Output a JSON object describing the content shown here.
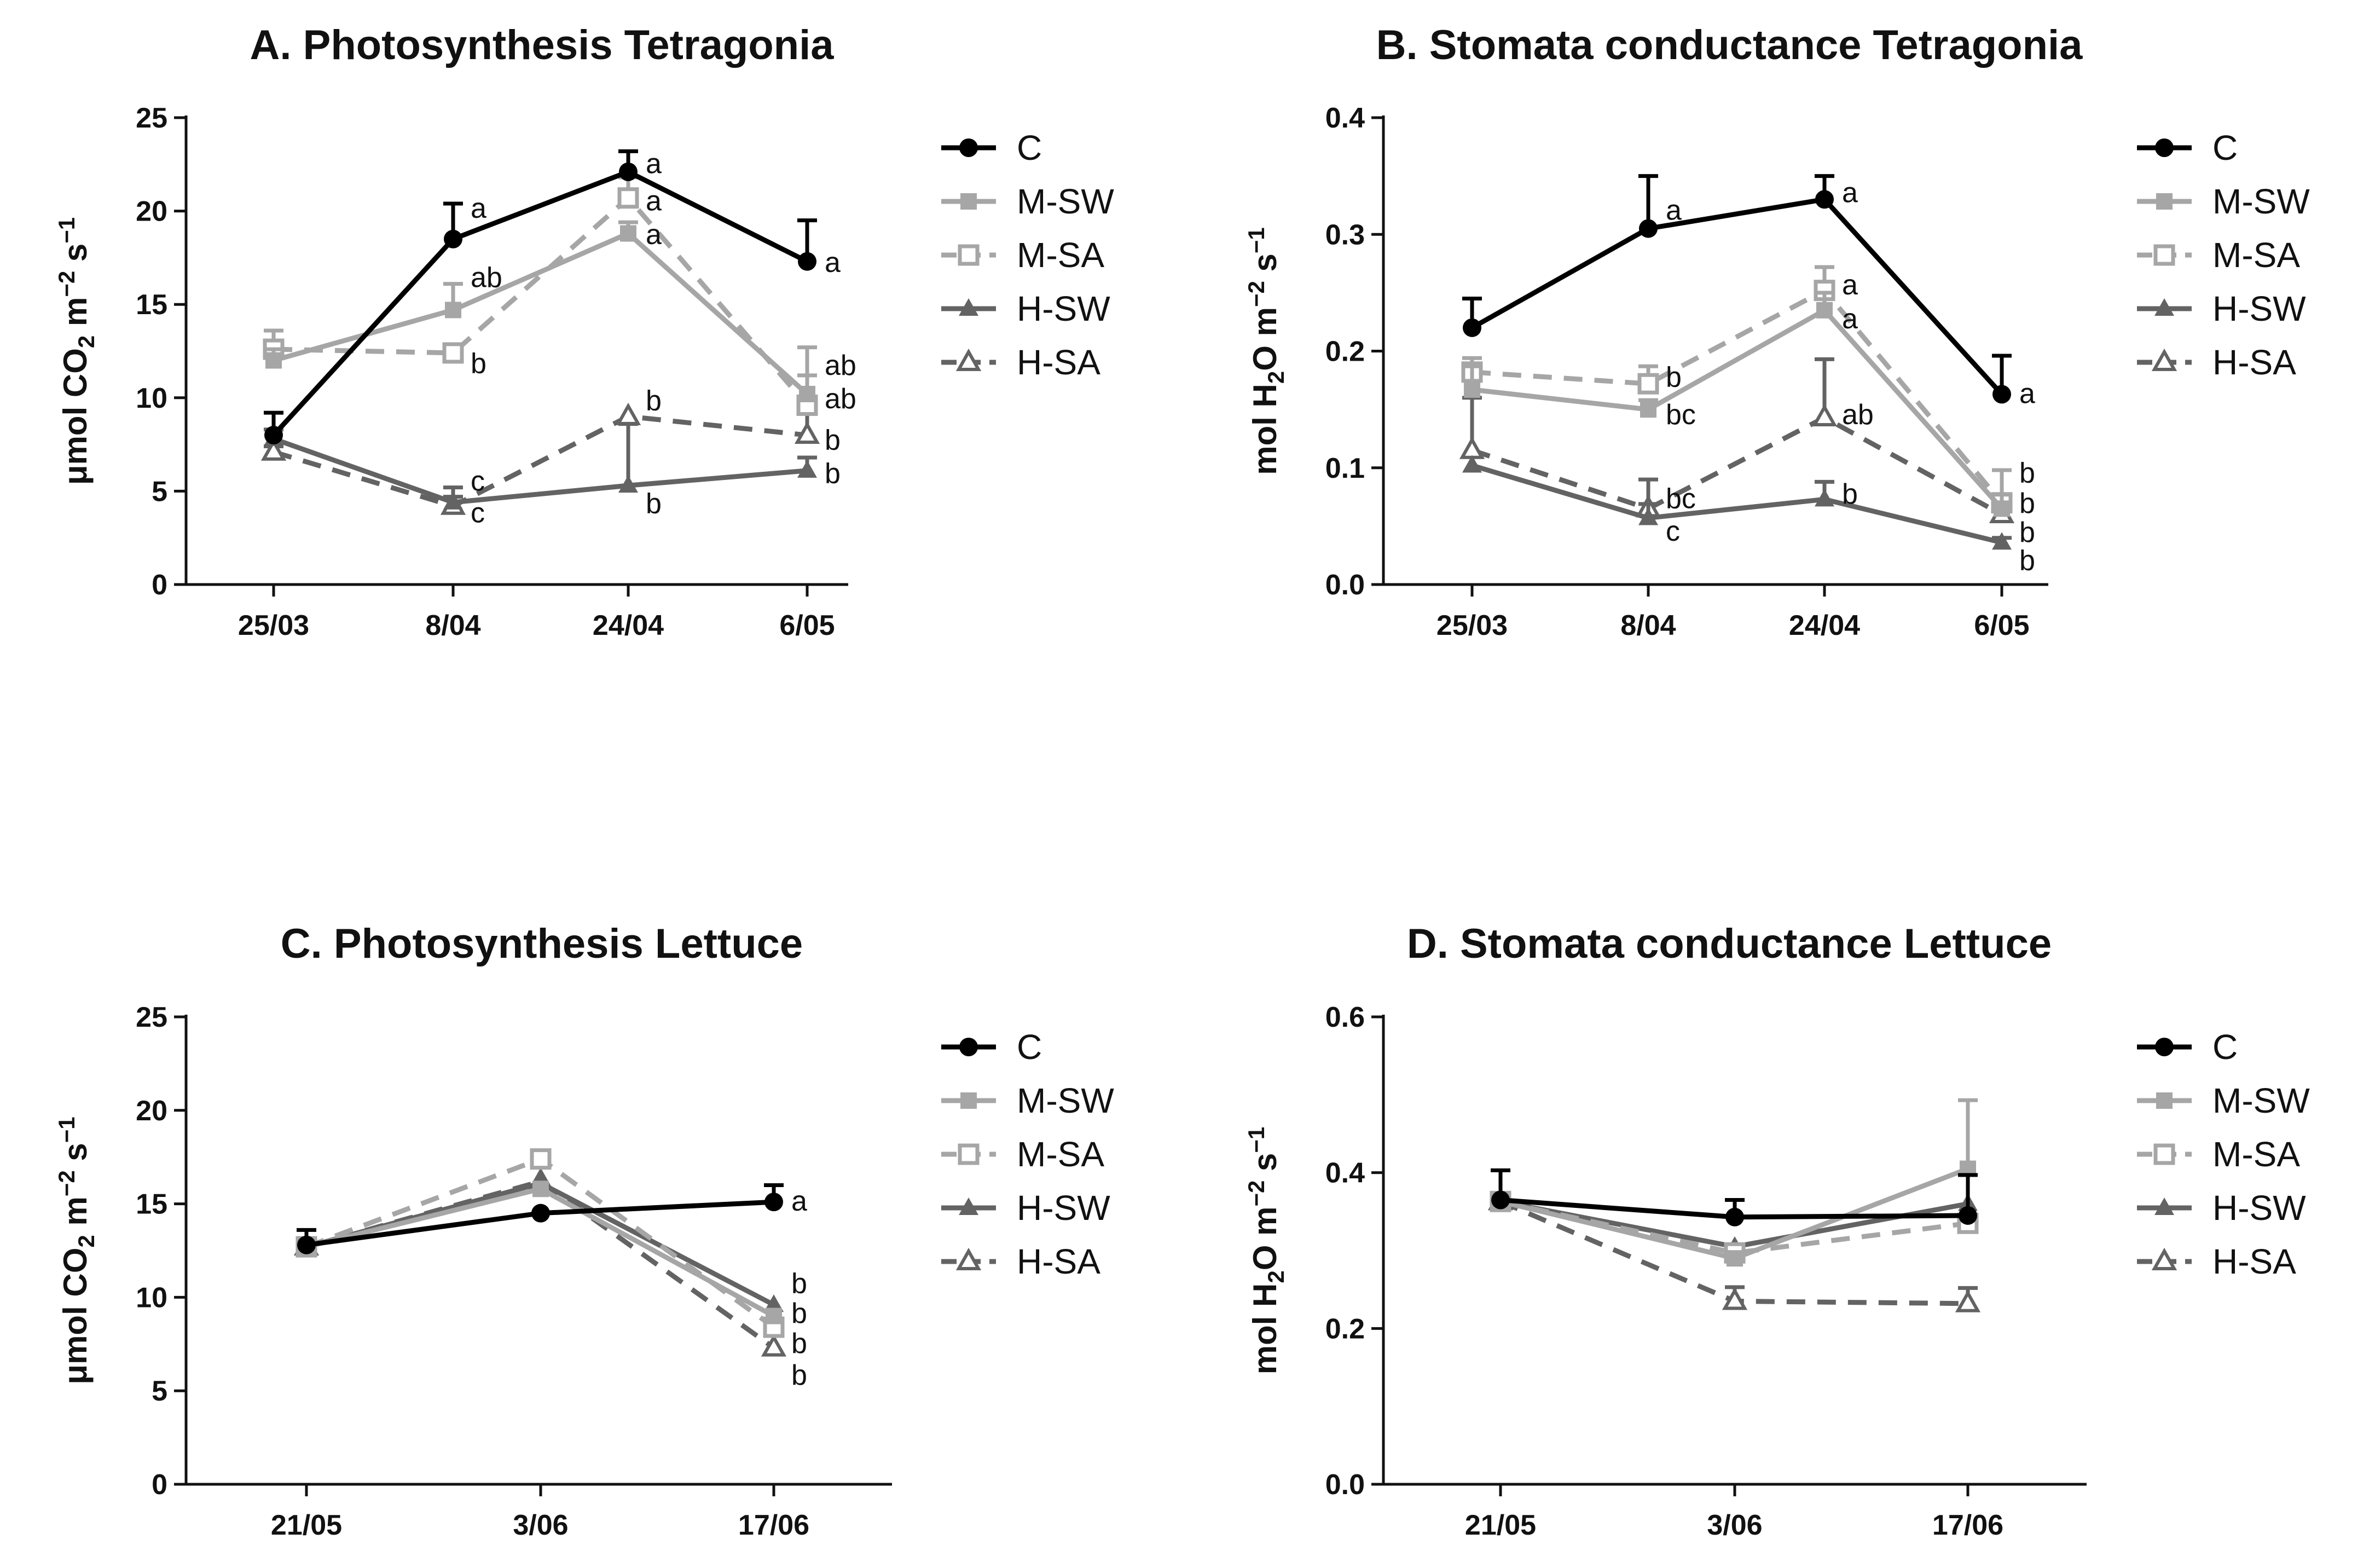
{
  "colors": {
    "C": "#000000",
    "M-SW": "#a6a6a6",
    "M-SA": "#a6a6a6",
    "H-SW": "#636363",
    "H-SA": "#636363"
  },
  "legend": {
    "labels": [
      "C",
      "M-SW",
      "M-SA",
      "H-SW",
      "H-SA"
    ]
  },
  "chart_data": [
    {
      "type": "line",
      "title": "A. Photosynthesis Tetragonia",
      "ylabel": "μmol CO2 m−2 s−1",
      "ylabel_parts": {
        "a": "μmol CO",
        "sub": "2",
        "b": " m",
        "sup1": "−2",
        "c": " s",
        "sup2": "−1"
      },
      "ylim": [
        0,
        25
      ],
      "yticks": [
        0,
        5,
        10,
        15,
        20,
        25
      ],
      "ytick_labels": [
        "0",
        "5",
        "10",
        "15",
        "20",
        "25"
      ],
      "categories": [
        "25/03",
        "8/04",
        "24/04",
        "6/05"
      ],
      "series": [
        {
          "name": "C",
          "values": [
            8.0,
            18.5,
            22.1,
            17.3
          ],
          "err": [
            1.2,
            1.9,
            1.1,
            2.2
          ]
        },
        {
          "name": "M-SW",
          "values": [
            12.0,
            14.7,
            18.8,
            10.2
          ],
          "err": [
            0.6,
            1.4,
            0.6,
            1.0
          ]
        },
        {
          "name": "M-SA",
          "values": [
            12.6,
            12.4,
            20.7,
            9.6
          ],
          "err": [
            1.0,
            0.0,
            1.1,
            3.1
          ]
        },
        {
          "name": "H-SW",
          "values": [
            7.8,
            4.4,
            5.3,
            6.1
          ],
          "err": [
            0.5,
            0.8,
            3.3,
            0.7
          ]
        },
        {
          "name": "H-SA",
          "values": [
            7.1,
            4.2,
            9.0,
            8.0
          ],
          "err": [
            0.3,
            0.5,
            0.0,
            1.3
          ]
        }
      ],
      "annotations": [
        {
          "text": "a",
          "x": 1,
          "y": 20.1
        },
        {
          "text": "ab",
          "x": 1,
          "y": 16.4
        },
        {
          "text": "b",
          "x": 1,
          "y": 11.8
        },
        {
          "text": "c",
          "x": 1,
          "y": 5.5
        },
        {
          "text": "c",
          "x": 1,
          "y": 3.8
        },
        {
          "text": "a",
          "x": 2,
          "y": 22.5
        },
        {
          "text": "a",
          "x": 2,
          "y": 20.5
        },
        {
          "text": "a",
          "x": 2,
          "y": 18.7
        },
        {
          "text": "b",
          "x": 2,
          "y": 9.8
        },
        {
          "text": "b",
          "x": 2,
          "y": 4.3
        },
        {
          "text": "a",
          "x": 3,
          "y": 17.2
        },
        {
          "text": "ab",
          "x": 3,
          "y": 11.7
        },
        {
          "text": "ab",
          "x": 3,
          "y": 9.9
        },
        {
          "text": "b",
          "x": 3,
          "y": 7.7
        },
        {
          "text": "b",
          "x": 3,
          "y": 5.9
        }
      ]
    },
    {
      "type": "line",
      "title": "B. Stomata conductance Tetragonia",
      "ylabel": "mol H2O m−2 s−1",
      "ylabel_parts": {
        "a": "mol H",
        "sub": "2",
        "b": "O m",
        "sup1": "−2",
        "c": " s",
        "sup2": "−1"
      },
      "ylim": [
        0,
        0.4
      ],
      "yticks": [
        0,
        0.1,
        0.2,
        0.3,
        0.4
      ],
      "ytick_labels": [
        "0.0",
        "0.1",
        "0.2",
        "0.3",
        "0.4"
      ],
      "categories": [
        "25/03",
        "8/04",
        "24/04",
        "6/05"
      ],
      "series": [
        {
          "name": "C",
          "values": [
            0.22,
            0.305,
            0.33,
            0.163
          ],
          "err": [
            0.025,
            0.045,
            0.02,
            0.033
          ]
        },
        {
          "name": "M-SW",
          "values": [
            0.167,
            0.15,
            0.235,
            0.065
          ],
          "err": [
            0.02,
            0.008,
            0.015,
            0.012
          ]
        },
        {
          "name": "M-SA",
          "values": [
            0.182,
            0.172,
            0.252,
            0.07
          ],
          "err": [
            0.012,
            0.015,
            0.02,
            0.028
          ]
        },
        {
          "name": "H-SW",
          "values": [
            0.102,
            0.057,
            0.073,
            0.036
          ],
          "err": [
            0.0,
            0.012,
            0.015,
            0.004
          ]
        },
        {
          "name": "H-SA",
          "values": [
            0.115,
            0.065,
            0.143,
            0.06
          ],
          "err": [
            0.045,
            0.025,
            0.05,
            0.015
          ]
        }
      ],
      "annotations": [
        {
          "text": "a",
          "x": 1,
          "y": 0.32
        },
        {
          "text": "b",
          "x": 1,
          "y": 0.177
        },
        {
          "text": "bc",
          "x": 1,
          "y": 0.145
        },
        {
          "text": "bc",
          "x": 1,
          "y": 0.073
        },
        {
          "text": "c",
          "x": 1,
          "y": 0.045
        },
        {
          "text": "a",
          "x": 2,
          "y": 0.335
        },
        {
          "text": "a",
          "x": 2,
          "y": 0.256
        },
        {
          "text": "a",
          "x": 2,
          "y": 0.227
        },
        {
          "text": "ab",
          "x": 2,
          "y": 0.145
        },
        {
          "text": "b",
          "x": 2,
          "y": 0.077
        },
        {
          "text": "a",
          "x": 3,
          "y": 0.163
        },
        {
          "text": "b",
          "x": 3,
          "y": 0.095
        },
        {
          "text": "b",
          "x": 3,
          "y": 0.069
        },
        {
          "text": "b",
          "x": 3,
          "y": 0.044
        },
        {
          "text": "b",
          "x": 3,
          "y": 0.02
        }
      ]
    },
    {
      "type": "line",
      "title": "C. Photosynthesis Lettuce",
      "ylabel": "μmol CO2 m−2 s−1",
      "ylabel_parts": {
        "a": "μmol CO",
        "sub": "2",
        "b": " m",
        "sup1": "−2",
        "c": " s",
        "sup2": "−1"
      },
      "ylim": [
        0,
        25
      ],
      "yticks": [
        0,
        5,
        10,
        15,
        20,
        25
      ],
      "ytick_labels": [
        "0",
        "5",
        "10",
        "15",
        "20",
        "25"
      ],
      "categories": [
        "21/05",
        "3/06",
        "17/06"
      ],
      "series": [
        {
          "name": "C",
          "values": [
            12.8,
            14.5,
            15.1
          ],
          "err": [
            0.8,
            0.0,
            0.9
          ]
        },
        {
          "name": "M-SW",
          "values": [
            12.7,
            15.8,
            9.0
          ],
          "err": [
            0.0,
            0.0,
            0.0
          ]
        },
        {
          "name": "M-SA",
          "values": [
            12.7,
            17.4,
            8.4
          ],
          "err": [
            0.0,
            0.0,
            0.0
          ]
        },
        {
          "name": "H-SW",
          "values": [
            12.7,
            16.1,
            9.6
          ],
          "err": [
            0.0,
            0.0,
            0.0
          ]
        },
        {
          "name": "H-SA",
          "values": [
            12.7,
            16.2,
            7.3
          ],
          "err": [
            0.0,
            0.0,
            0.0
          ]
        }
      ],
      "annotations": [
        {
          "text": "a",
          "x": 2,
          "y": 15.1
        },
        {
          "text": "b",
          "x": 2,
          "y": 10.7
        },
        {
          "text": "b",
          "x": 2,
          "y": 9.1
        },
        {
          "text": "b",
          "x": 2,
          "y": 7.5
        },
        {
          "text": "b",
          "x": 2,
          "y": 5.8
        }
      ]
    },
    {
      "type": "line",
      "title": "D. Stomata conductance Lettuce",
      "ylabel": "mol H2O m−2 s−1",
      "ylabel_parts": {
        "a": "mol H",
        "sub": "2",
        "b": "O m",
        "sup1": "−2",
        "c": " s",
        "sup2": "−1"
      },
      "ylim": [
        0,
        0.6
      ],
      "yticks": [
        0,
        0.2,
        0.4,
        0.6
      ],
      "ytick_labels": [
        "0.0",
        "0.2",
        "0.4",
        "0.6"
      ],
      "categories": [
        "21/05",
        "3/06",
        "17/06"
      ],
      "series": [
        {
          "name": "C",
          "values": [
            0.365,
            0.343,
            0.345
          ],
          "err": [
            0.038,
            0.022,
            0.052
          ]
        },
        {
          "name": "M-SW",
          "values": [
            0.363,
            0.29,
            0.405
          ],
          "err": [
            0.0,
            0.0,
            0.088
          ]
        },
        {
          "name": "M-SA",
          "values": [
            0.363,
            0.297,
            0.335
          ],
          "err": [
            0.0,
            0.0,
            0.0
          ]
        },
        {
          "name": "H-SW",
          "values": [
            0.363,
            0.305,
            0.36
          ],
          "err": [
            0.0,
            0.0,
            0.0
          ]
        },
        {
          "name": "H-SA",
          "values": [
            0.363,
            0.235,
            0.232
          ],
          "err": [
            0.0,
            0.018,
            0.02
          ]
        }
      ],
      "annotations": []
    }
  ]
}
